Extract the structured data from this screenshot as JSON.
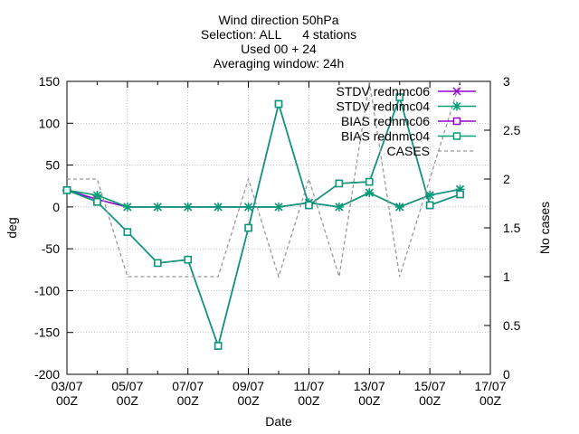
{
  "chart_data": {
    "type": "line",
    "title_lines": [
      "Wind direction 50hPa",
      "Selection: ALL      4 stations",
      "Used 00 + 24",
      "Averaging window: 24h"
    ],
    "xlabel": "Date",
    "ylabel": "deg",
    "y2label": "No cases",
    "x_range": [
      "03/07 00Z",
      "17/07 00Z"
    ],
    "x_ticks": [
      {
        "line1": "03/07",
        "line2": "00Z",
        "day": 3
      },
      {
        "line1": "05/07",
        "line2": "00Z",
        "day": 5
      },
      {
        "line1": "07/07",
        "line2": "00Z",
        "day": 7
      },
      {
        "line1": "09/07",
        "line2": "00Z",
        "day": 9
      },
      {
        "line1": "11/07",
        "line2": "00Z",
        "day": 11
      },
      {
        "line1": "13/07",
        "line2": "00Z",
        "day": 13
      },
      {
        "line1": "15/07",
        "line2": "00Z",
        "day": 15
      },
      {
        "line1": "17/07",
        "line2": "00Z",
        "day": 17
      }
    ],
    "ylim": [
      -200,
      150
    ],
    "y_ticks": [
      150,
      100,
      50,
      0,
      -50,
      -100,
      -150,
      -200
    ],
    "y2lim": [
      0,
      3
    ],
    "y2_ticks": [
      3,
      2.5,
      2,
      1.5,
      1,
      0.5,
      0
    ],
    "grid": true,
    "legend_position": "top-right",
    "x_days": [
      3,
      4,
      5,
      6,
      7,
      8,
      9,
      10,
      11,
      12,
      13,
      14,
      15,
      16
    ],
    "series": [
      {
        "name": "STDV rednmc06",
        "color": "#9400d3",
        "marker": "x",
        "axis": "y1",
        "values": [
          20,
          9,
          0,
          0,
          0,
          0,
          0,
          0,
          5,
          0,
          17,
          0,
          14,
          21
        ]
      },
      {
        "name": "STDV rednmc04",
        "color": "#009e73",
        "marker": "star",
        "axis": "y1",
        "values": [
          20,
          14,
          0,
          0,
          0,
          0,
          0,
          0,
          5,
          0,
          17,
          0,
          14,
          21
        ]
      },
      {
        "name": "BIAS rednmc06",
        "color": "#9400d3",
        "marker": "square",
        "axis": "y1",
        "values": [
          20,
          6,
          -30,
          -67,
          -63,
          -166,
          -25,
          123,
          2,
          28,
          30,
          131,
          2,
          15
        ]
      },
      {
        "name": "BIAS rednmc04",
        "color": "#009e73",
        "marker": "square",
        "axis": "y1",
        "values": [
          20,
          6,
          -30,
          -67,
          -63,
          -166,
          -25,
          123,
          2,
          28,
          30,
          131,
          2,
          15
        ]
      },
      {
        "name": "CASES",
        "color": "#999999",
        "marker": "none",
        "dashed": true,
        "axis": "y2",
        "values": [
          2,
          2,
          1,
          1,
          1,
          1,
          2,
          1,
          2,
          1,
          3,
          1,
          2,
          3
        ]
      }
    ]
  }
}
